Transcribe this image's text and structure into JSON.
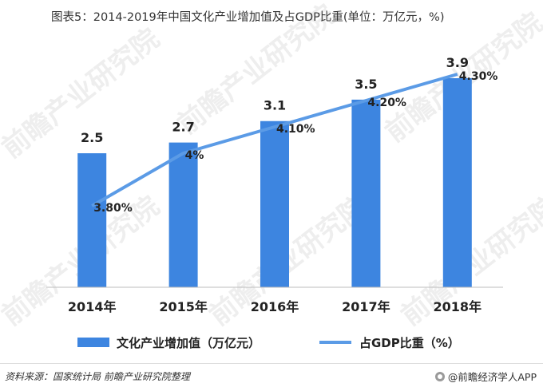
{
  "title": "图表5：2014-2019年中国文化产业增加值及占GDP比重(单位：万亿元，%)",
  "footer": {
    "source": "资料来源：国家统计局 前瞻产业研究院整理",
    "brand": "@前瞻经济学人APP"
  },
  "watermark": "前瞻产业研究院",
  "colors": {
    "bar": "#3d85e0",
    "line": "#5b9be6"
  },
  "chart_data": {
    "type": "bar",
    "categories": [
      "2014年",
      "2015年",
      "2016年",
      "2017年",
      "2018年"
    ],
    "series": [
      {
        "name": "文化产业增加值（万亿元）",
        "type": "bar",
        "values": [
          2.5,
          2.7,
          3.1,
          3.5,
          3.9
        ],
        "labels": [
          "2.5",
          "2.7",
          "3.1",
          "3.5",
          "3.9"
        ]
      },
      {
        "name": "占GDP比重（%）",
        "type": "line",
        "values": [
          3.8,
          4.0,
          4.1,
          4.2,
          4.3
        ],
        "labels": [
          "3.80%",
          "4%",
          "4.10%",
          "4.20%",
          "4.30%"
        ]
      }
    ],
    "ylim": [
      0,
      4.0
    ],
    "y2lim": [
      3.5,
      4.35
    ],
    "grid": false,
    "legend": "bottom"
  }
}
